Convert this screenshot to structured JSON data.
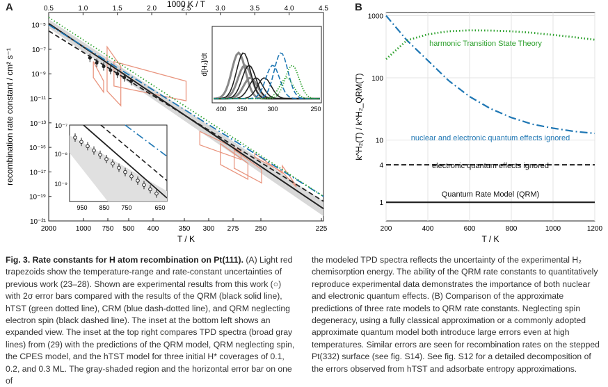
{
  "panels": {
    "a_label": "A",
    "b_label": "B"
  },
  "chart_data": [
    {
      "type": "line",
      "title": "",
      "xlabel": "T / K",
      "x2label": "1000 K / T",
      "ylabel": "recombination rate constant / cm² s⁻¹",
      "xticks": [
        "2000",
        "1000",
        "750",
        "500",
        "400",
        "350",
        "300",
        "275",
        "250",
        "225"
      ],
      "x2ticks": [
        "0.5",
        "1.0",
        "1.5",
        "2.0",
        "2.5",
        "3.0",
        "3.5",
        "4.0",
        "4.5"
      ],
      "x2lim": [
        0.5,
        4.5
      ],
      "ylim_log10": [
        -21,
        -4
      ],
      "yticks": [
        "10⁻²¹",
        "10⁻¹⁹",
        "10⁻¹⁷",
        "10⁻¹⁵",
        "10⁻¹³",
        "10⁻¹¹",
        "10⁻⁹",
        "10⁻⁷",
        "10⁻⁵"
      ],
      "series": [
        {
          "name": "QRM",
          "color": "#222222",
          "style": "solid",
          "x_invT": [
            0.5,
            4.5
          ],
          "log10_k": [
            -4.9,
            -20.0
          ]
        },
        {
          "name": "QRM neglecting electron spin",
          "color": "#222222",
          "style": "dashed",
          "x_invT": [
            0.5,
            4.5
          ],
          "log10_k": [
            -5.5,
            -19.4
          ]
        },
        {
          "name": "CRM",
          "color": "#1f77b4",
          "style": "dashdot",
          "x_invT": [
            0.5,
            4.5
          ],
          "log10_k": [
            -5.0,
            -19.0
          ]
        },
        {
          "name": "hTST",
          "color": "#2ca02c",
          "style": "dotted",
          "x_invT": [
            0.5,
            4.5
          ],
          "log10_k": [
            -4.4,
            -19.0
          ]
        }
      ],
      "experiment": {
        "x_invT": [
          1.1,
          1.2,
          1.3,
          1.4,
          1.5,
          1.6,
          1.7
        ],
        "log10_k": [
          -7.7,
          -8.1,
          -8.4,
          -8.7,
          -9.0,
          -9.3,
          -9.6
        ]
      }
    },
    {
      "type": "line",
      "title": "",
      "inset": "top-right",
      "xlabel": "",
      "ylabel": "d[H₂]/dt",
      "xticks": [
        "400",
        "350",
        "300",
        "250"
      ],
      "description_series": [
        "TPD experiment",
        "QRM",
        "QRM no spin",
        "CPES",
        "hTST"
      ]
    },
    {
      "type": "line",
      "title": "",
      "inset": "bottom-left",
      "xticks": [
        "950",
        "850",
        "750",
        "650"
      ],
      "yticks": [
        "10⁻⁹",
        "10⁻⁸",
        "10⁻⁷"
      ]
    },
    {
      "type": "line",
      "title": "",
      "xlabel": "T / K",
      "ylabel": "k^H₂(T) / k^H₂_QRM(T)",
      "xlim": [
        200,
        1200
      ],
      "xticks": [
        "200",
        "400",
        "600",
        "800",
        "1000",
        "1200"
      ],
      "ylim_log10": [
        -0.3,
        3.05
      ],
      "yticks": [
        "1",
        "4",
        "10",
        "100",
        "1000"
      ],
      "series": [
        {
          "name": "Quantum Rate Model (QRM)",
          "color": "#222222",
          "style": "solid",
          "x": [
            200,
            1200
          ],
          "y": [
            1,
            1
          ]
        },
        {
          "name": "electronic quantum effects ignored",
          "color": "#222222",
          "style": "dashed",
          "x": [
            200,
            1200
          ],
          "y": [
            4,
            4
          ]
        },
        {
          "name": "nuclear and electronic quantum effects ignored",
          "color": "#1f77b4",
          "style": "dashdot",
          "x": [
            200,
            300,
            400,
            500,
            600,
            700,
            800,
            900,
            1000,
            1100,
            1200
          ],
          "y": [
            1000,
            400,
            190,
            90,
            50,
            32,
            23,
            18,
            15.5,
            13.8,
            12.8
          ]
        },
        {
          "name": "harmonic Transition State Theory",
          "color": "#2ca02c",
          "style": "dotted",
          "x": [
            200,
            300,
            400,
            500,
            600,
            700,
            800,
            900,
            1000,
            1100,
            1200
          ],
          "y": [
            200,
            400,
            500,
            560,
            580,
            575,
            560,
            530,
            490,
            450,
            410
          ]
        }
      ]
    }
  ],
  "caption": {
    "left_title": "Fig. 3. Rate constants for H atom recombination on Pt(111).",
    "left_body": "(A) Light red trapezoids show the temperature-range and rate-constant uncertainties of previous work (23–28). Shown are experimental results from this work (○) with 2σ error bars compared with the results of the QRM (black solid line), hTST (green dotted line), CRM (blue dash-dotted line), and QRM neglecting electron spin (black dashed line). The inset at the bottom left shows an expanded view. The inset at the top right compares TPD spectra (broad gray lines) from (29) with the predictions of the QRM model, QRM neglecting spin, the CPES model, and the hTST model for three initial H* coverages of 0.1, 0.2, and 0.3 ML. The gray-shaded region and the horizontal error bar on one of",
    "right_body": "the modeled TPD spectra reflects the uncertainty of the experimental H₂ chemisorption energy. The ability of the QRM rate constants to quantitatively reproduce experimental data demonstrates the importance of both nuclear and electronic quantum effects. (B) Comparison of the approximate predictions of three rate models to QRM rate constants. Neglecting spin degeneracy, using a fully classical approximation or a commonly adopted approximate quantum model both introduce large errors even at high temperatures. Similar errors are seen for recombination rates on the stepped Pt(332) surface (see fig. S14). See fig. S12 for a detailed decomposition of the errors observed from hTST and adsorbate entropy approximations."
  }
}
